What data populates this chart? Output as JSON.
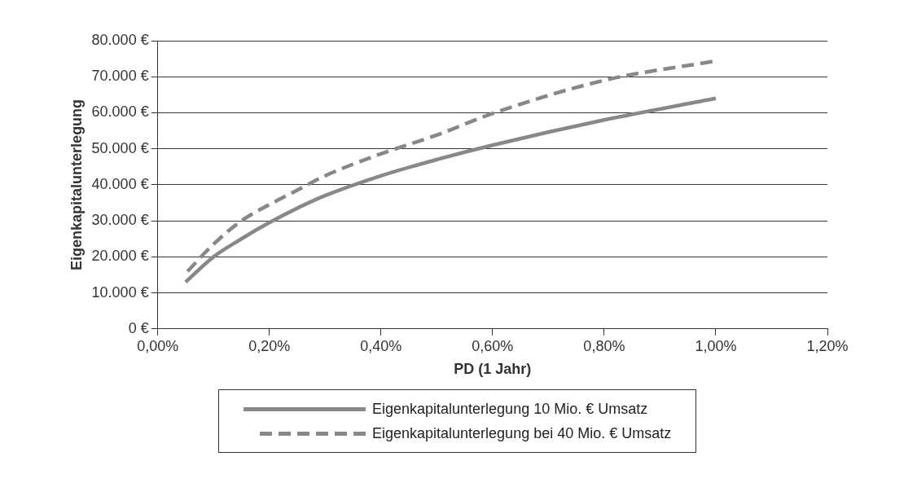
{
  "chart_data": {
    "type": "line",
    "xlabel": "PD (1 Jahr)",
    "ylabel": "Eigenkapitalunterlegung",
    "xlim": [
      0,
      1.2
    ],
    "xticks": [
      {
        "value": 0,
        "label": "0,00%"
      },
      {
        "value": 0.2,
        "label": "0,20%"
      },
      {
        "value": 0.4,
        "label": "0,40%"
      },
      {
        "value": 0.6,
        "label": "0,60%"
      },
      {
        "value": 0.8,
        "label": "0,80%"
      },
      {
        "value": 1,
        "label": "1,00%"
      },
      {
        "value": 1.2,
        "label": "1,20%"
      }
    ],
    "ylim": [
      0,
      80000
    ],
    "yticks": [
      {
        "value": 0,
        "label": "0 €"
      },
      {
        "value": 10000,
        "label": "10.000 €"
      },
      {
        "value": 20000,
        "label": "20.000 €"
      },
      {
        "value": 30000,
        "label": "30.000 €"
      },
      {
        "value": 40000,
        "label": "40.000 €"
      },
      {
        "value": 50000,
        "label": "50.000 €"
      },
      {
        "value": 60000,
        "label": "60.000 €"
      },
      {
        "value": 70000,
        "label": "70.000 €"
      },
      {
        "value": 80000,
        "label": "80.000 €"
      }
    ],
    "x": [
      0.05,
      0.1,
      0.15,
      0.2,
      0.25,
      0.3,
      0.4,
      0.5,
      0.6,
      0.8,
      1.0
    ],
    "series": [
      {
        "name": "Eigenkapitalunterlegung 10 Mio. € Umsatz",
        "color": "#888888",
        "line_style": "solid",
        "values": [
          13000,
          20000,
          25000,
          29500,
          33500,
          37000,
          42500,
          47000,
          51000,
          58000,
          64000
        ]
      },
      {
        "name": "Eigenkapitalunterlegung bei 40 Mio. € Umsatz",
        "color": "#888888",
        "line_style": "dashed",
        "values": [
          15400,
          23500,
          30000,
          34500,
          38500,
          42500,
          48600,
          53800,
          59800,
          69000,
          74400
        ]
      }
    ],
    "grid": "y",
    "legend": "bottom",
    "marker": "none"
  }
}
